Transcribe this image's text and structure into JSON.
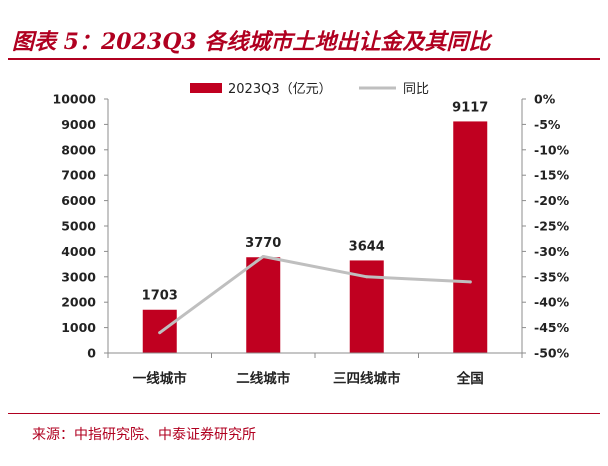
{
  "title": "图表 5：2023Q3 各线城市土地出让金及其同比",
  "source": "来源：中指研究院、中泰证券研究所",
  "colors": {
    "accent": "#b00020",
    "bar": "#c00020",
    "line": "#bfbfbf",
    "axis": "#8c8c8c",
    "text": "#222222"
  },
  "chart_data": {
    "type": "bar",
    "categories": [
      "一线城市",
      "二线城市",
      "三四线城市",
      "全国"
    ],
    "series": [
      {
        "name": "2023Q3（亿元）",
        "type": "bar",
        "axis": "left",
        "values": [
          1703,
          3770,
          3644,
          9117
        ],
        "labels": [
          "1703",
          "3770",
          "3644",
          "9117"
        ]
      },
      {
        "name": "同比",
        "type": "line",
        "axis": "right",
        "values": [
          -46,
          -31,
          -35,
          -36
        ]
      }
    ],
    "y_left": {
      "min": 0,
      "max": 10000,
      "ticks": [
        "0",
        "1000",
        "2000",
        "3000",
        "4000",
        "5000",
        "6000",
        "7000",
        "8000",
        "9000",
        "10000"
      ]
    },
    "y_right": {
      "min": -50,
      "max": 0,
      "ticks": [
        "0%",
        "-5%",
        "-10%",
        "-15%",
        "-20%",
        "-25%",
        "-30%",
        "-35%",
        "-40%",
        "-45%",
        "-50%"
      ]
    },
    "legend": "top-center"
  }
}
